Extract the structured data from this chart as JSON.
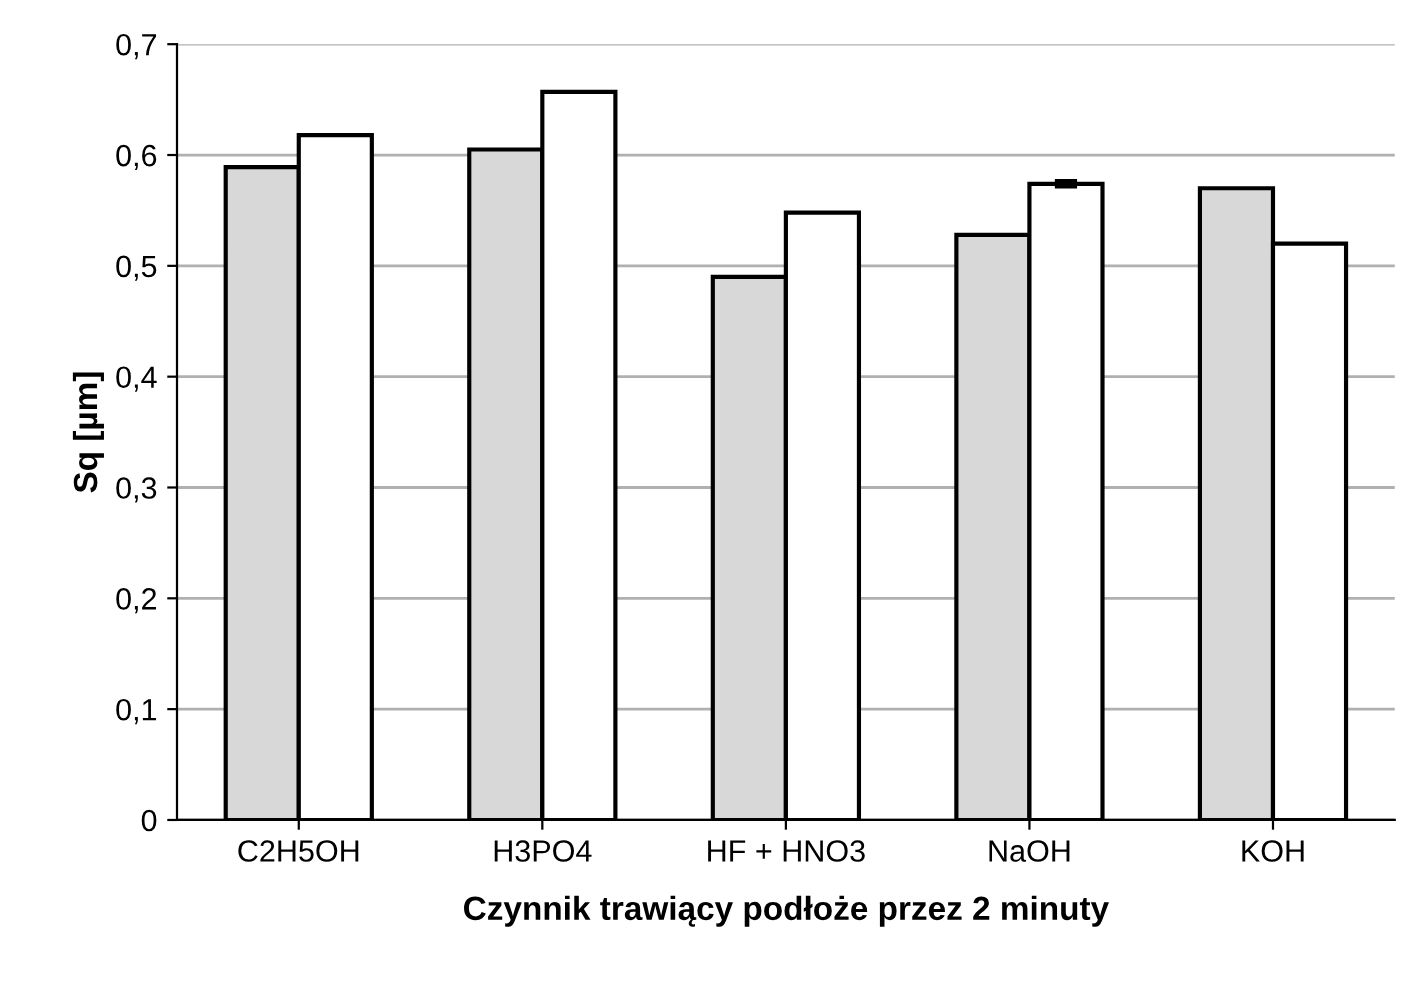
{
  "chart_data": {
    "type": "bar",
    "xlabel": "Czynnik trawiący podłoże przez 2 minuty",
    "ylabel": "Sq [µm]",
    "categories": [
      "C2H5OH",
      "H3PO4",
      "HF + HNO3",
      "NaOH",
      "KOH"
    ],
    "series": [
      {
        "color": "#d8d8d8",
        "values": [
          0.589,
          0.605,
          0.49,
          0.528,
          0.57
        ]
      },
      {
        "color": "#ffffff",
        "values": [
          0.618,
          0.657,
          0.548,
          0.574,
          0.52
        ],
        "errors": [
          null,
          null,
          null,
          0.003,
          null
        ]
      }
    ],
    "ylim": [
      0,
      0.7
    ],
    "yticks": [
      {
        "value": 0,
        "label": "0"
      },
      {
        "value": 0.1,
        "label": "0,1"
      },
      {
        "value": 0.2,
        "label": "0,2"
      },
      {
        "value": 0.3,
        "label": "0,3"
      },
      {
        "value": 0.4,
        "label": "0,4"
      },
      {
        "value": 0.5,
        "label": "0,5"
      },
      {
        "value": 0.6,
        "label": "0,6"
      },
      {
        "value": 0.7,
        "label": "0,7"
      }
    ],
    "grid": "y",
    "legend": false
  }
}
